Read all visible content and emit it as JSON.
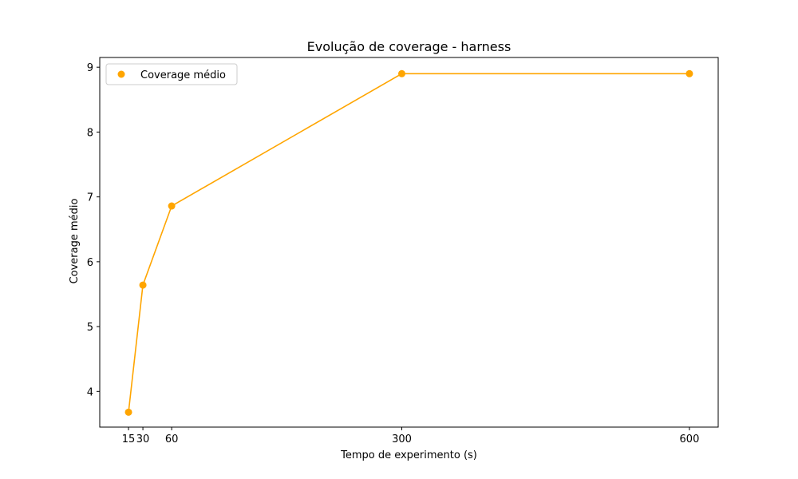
{
  "chart_data": {
    "type": "line",
    "title": "Evolução de coverage - harness",
    "xlabel": "Tempo de experimento (s)",
    "ylabel": "Coverage médio",
    "x": [
      15,
      30,
      60,
      300,
      600
    ],
    "x_tick_labels": [
      "15",
      "30",
      "60",
      "300",
      "600"
    ],
    "y_ticks": [
      4,
      5,
      6,
      7,
      8,
      9
    ],
    "xlim": [
      -15,
      630
    ],
    "ylim": [
      3.45,
      9.15
    ],
    "grid": false,
    "legend_position": "upper-left",
    "series": [
      {
        "name": "Coverage médio",
        "values": [
          3.68,
          5.64,
          6.86,
          8.9,
          8.9
        ],
        "color": "#FFA500",
        "marker": "circle"
      }
    ]
  }
}
